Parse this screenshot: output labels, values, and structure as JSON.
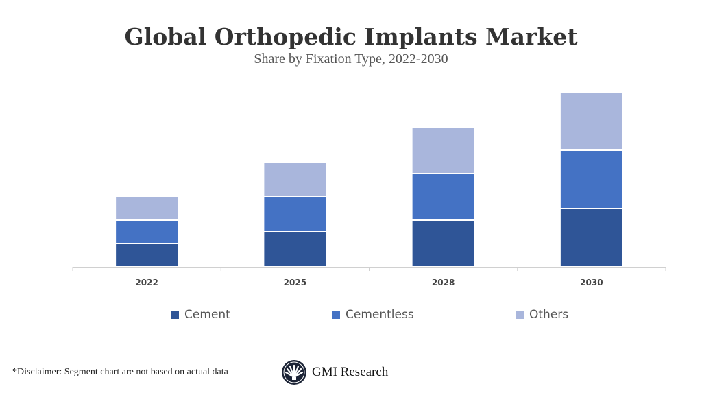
{
  "chart_data": {
    "type": "bar",
    "stacked": true,
    "title": "Global Orthopedic Implants Market",
    "subtitle": "Share by Fixation Type, 2022-2030",
    "categories": [
      "2022",
      "2025",
      "2028",
      "2030"
    ],
    "series": [
      {
        "name": "Cement",
        "color": "#2F5597",
        "values": [
          1,
          1.5,
          2,
          2.5
        ]
      },
      {
        "name": "Cementless",
        "color": "#4472C4",
        "values": [
          1,
          1.5,
          2,
          2.5
        ]
      },
      {
        "name": "Others",
        "color": "#A9B6DC",
        "values": [
          1,
          1.5,
          2,
          2.5
        ]
      }
    ],
    "ylim": [
      0,
      8
    ],
    "y_axis_visible": false,
    "grid": false,
    "legend": "bottom"
  },
  "footer": {
    "disclaimer": "*Disclaimer:  Segment chart are not based on actual data",
    "logo_text": "GMI Research"
  }
}
